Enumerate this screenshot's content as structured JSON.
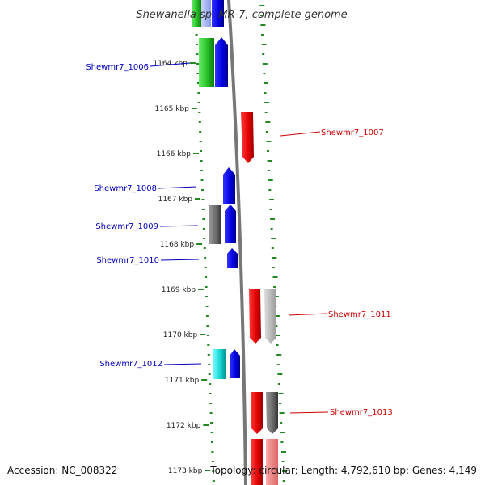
{
  "title": "Shewanella sp. MR-7, complete genome",
  "footer": {
    "accession": "Accession: NC_008322",
    "topology": "Topology: circular; Length: 4,792,610 bp; Genes: 4,149"
  },
  "colors": {
    "forward_label": "#0000bb",
    "reverse_label": "#cc0000",
    "backbone": "#777777",
    "tick": "#228822"
  },
  "kbp_labels": [
    "1164 kbp",
    "1165 kbp",
    "1166 kbp",
    "1167 kbp",
    "1168 kbp",
    "1169 kbp",
    "1170 kbp",
    "1171 kbp",
    "1172 kbp",
    "1173 kbp"
  ],
  "gene_labels": [
    {
      "text": "Shewmr7_1006",
      "strand": "forward"
    },
    {
      "text": "Shewmr7_1007",
      "strand": "reverse"
    },
    {
      "text": "Shewmr7_1008",
      "strand": "forward"
    },
    {
      "text": "Shewmr7_1009",
      "strand": "forward"
    },
    {
      "text": "Shewmr7_1010",
      "strand": "forward"
    },
    {
      "text": "Shewmr7_1011",
      "strand": "reverse"
    },
    {
      "text": "Shewmr7_1012",
      "strand": "forward"
    },
    {
      "text": "Shewmr7_1013",
      "strand": "reverse"
    }
  ]
}
